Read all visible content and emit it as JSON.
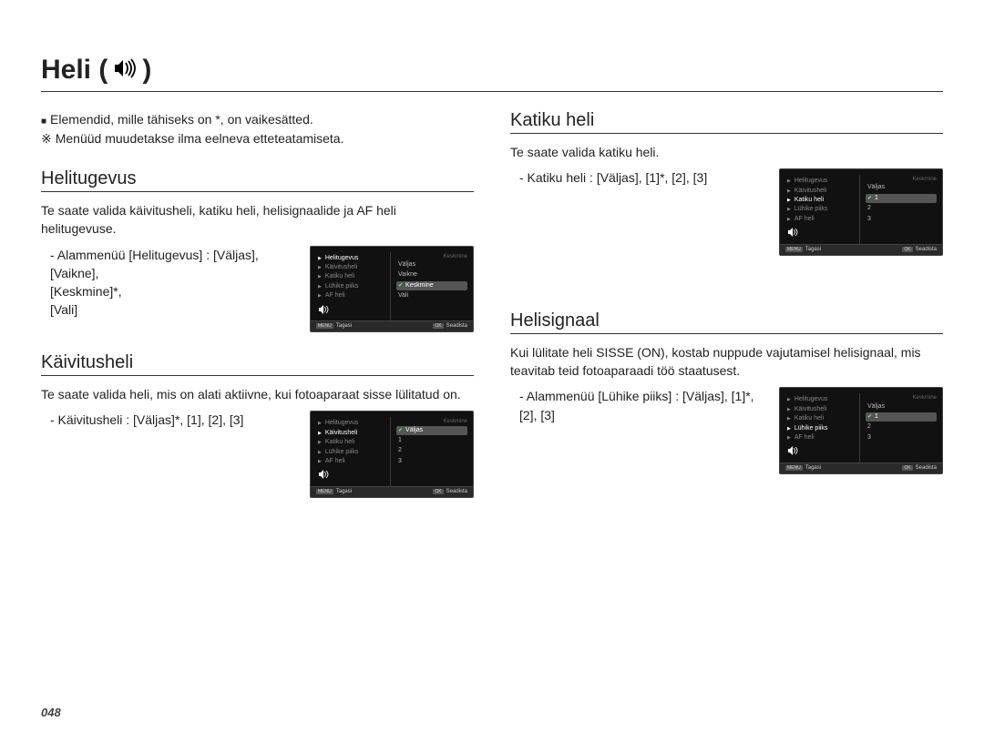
{
  "page": {
    "title_prefix": "Heli (",
    "title_suffix": ")",
    "number": "048"
  },
  "notes": {
    "line1": "Elemendid, mille tähiseks on *, on vaikesätted.",
    "line2": "Menüüd muudetakse ilma eelneva etteteatamiseta."
  },
  "sections": {
    "helitugevus": {
      "heading": "Helitugevus",
      "body": "Te saate valida käivitusheli, katiku heli, helisignaalide ja AF heli helitugevuse.",
      "sub": "- Alammenüü [Helitugevus] : [Väljas], [Vaikne], [Keskmine]*, [Vali]"
    },
    "kaivitusheli": {
      "heading": "Käivitusheli",
      "body": "Te saate valida heli, mis on alati aktiivne, kui fotoaparaat sisse lülitatud on.",
      "sub": "- Käivitusheli : [Väljas]*, [1], [2], [3]"
    },
    "katikuheli": {
      "heading": "Katiku heli",
      "body": "Te saate valida katiku heli.",
      "sub": "- Katiku heli : [Väljas], [1]*, [2], [3]"
    },
    "helisignaal": {
      "heading": "Helisignaal",
      "body": "Kui lülitate heli SISSE (ON), kostab nuppude vajutamisel helisignaal, mis teavitab teid fotoaparaadi töö staatusest.",
      "sub": "- Alammenüü [Lühike piiks] : [Väljas], [1]*, [2], [3]"
    }
  },
  "lcd_common": {
    "menu_items": [
      "Helitugevus",
      "Käivitusheli",
      "Katiku heli",
      "Lühike piiks",
      "AF heli"
    ],
    "footer_back_key": "MENU",
    "footer_back": "Tagasi",
    "footer_ok_key": "OK",
    "footer_ok": "Seadista"
  },
  "lcd": {
    "helitugevus": {
      "selected_index": 0,
      "options": [
        "Väljas",
        "Vaikne",
        "Keskmine",
        "Vali"
      ],
      "highlight_index": 2,
      "check_index": 2,
      "right_header": "Keskmine"
    },
    "kaivitusheli": {
      "selected_index": 1,
      "options": [
        "Väljas",
        "1",
        "2",
        "3"
      ],
      "highlight_index": 0,
      "check_index": 0,
      "right_header": "Keskmine"
    },
    "katikuheli": {
      "selected_index": 2,
      "options": [
        "Väljas",
        "1",
        "2",
        "3"
      ],
      "highlight_index": 1,
      "check_index": 1,
      "right_header": "Keskmine"
    },
    "helisignaal": {
      "selected_index": 3,
      "options": [
        "Väljas",
        "1",
        "2",
        "3"
      ],
      "highlight_index": 1,
      "check_index": 1,
      "right_header": "Keskmine"
    }
  },
  "colors": {
    "text": "#222222",
    "lcd_bg": "#111111",
    "lcd_border": "#444444",
    "lcd_dim": "#888888",
    "lcd_hi": "#555555"
  }
}
